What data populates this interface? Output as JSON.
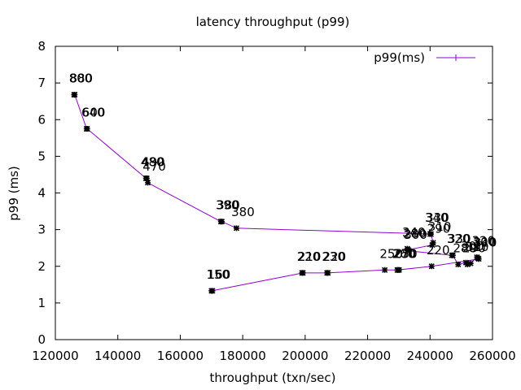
{
  "chart_data": {
    "type": "line",
    "title": "latency throughput (p99)",
    "xlabel": "throughput (txn/sec)",
    "ylabel": "p99 (ms)",
    "xlim": [
      120000,
      260000
    ],
    "ylim": [
      0,
      8
    ],
    "xticks": [
      120000,
      140000,
      160000,
      180000,
      200000,
      220000,
      240000,
      260000
    ],
    "yticks": [
      0,
      1,
      2,
      3,
      4,
      5,
      6,
      7,
      8
    ],
    "legend": {
      "label": "p99(ms)",
      "placement": "top-right"
    },
    "series_color": "#9400d3",
    "series": [
      {
        "name": "p99(ms)",
        "points": [
          {
            "x": 126000,
            "y": 6.68,
            "label": "800"
          },
          {
            "x": 126200,
            "y": 6.68,
            "label": "880"
          },
          {
            "x": 130000,
            "y": 5.75,
            "label": "640"
          },
          {
            "x": 130200,
            "y": 5.75,
            "label": "600"
          },
          {
            "x": 149000,
            "y": 4.4,
            "label": "480"
          },
          {
            "x": 149300,
            "y": 4.4,
            "label": "490"
          },
          {
            "x": 149600,
            "y": 4.28,
            "label": "470"
          },
          {
            "x": 173000,
            "y": 3.22,
            "label": "390"
          },
          {
            "x": 173300,
            "y": 3.22,
            "label": "380"
          },
          {
            "x": 178000,
            "y": 3.04,
            "label": "380"
          },
          {
            "x": 240000,
            "y": 2.88,
            "label": "340"
          },
          {
            "x": 240300,
            "y": 2.88,
            "label": "330"
          },
          {
            "x": 241000,
            "y": 2.64,
            "label": "310"
          },
          {
            "x": 240700,
            "y": 2.58,
            "label": "290"
          },
          {
            "x": 233000,
            "y": 2.45,
            "label": "280"
          },
          {
            "x": 232700,
            "y": 2.48,
            "label": "340"
          },
          {
            "x": 233300,
            "y": 2.42,
            "label": "300"
          },
          {
            "x": 247000,
            "y": 2.3,
            "label": "320"
          },
          {
            "x": 247300,
            "y": 2.3,
            "label": "330"
          },
          {
            "x": 249000,
            "y": 2.05,
            "label": "280"
          },
          {
            "x": 251500,
            "y": 2.1,
            "label": "300"
          },
          {
            "x": 252000,
            "y": 2.05,
            "label": "290"
          },
          {
            "x": 253000,
            "y": 2.08,
            "label": "310"
          },
          {
            "x": 255000,
            "y": 2.25,
            "label": "320"
          },
          {
            "x": 255300,
            "y": 2.22,
            "label": "300"
          },
          {
            "x": 255600,
            "y": 2.2,
            "label": "310"
          },
          {
            "x": 240500,
            "y": 2.0,
            "label": "220"
          },
          {
            "x": 229500,
            "y": 1.9,
            "label": "260"
          },
          {
            "x": 229800,
            "y": 1.9,
            "label": "270"
          },
          {
            "x": 230100,
            "y": 1.9,
            "label": "250"
          },
          {
            "x": 225500,
            "y": 1.9,
            "label": "250"
          },
          {
            "x": 207000,
            "y": 1.82,
            "label": "230"
          },
          {
            "x": 207300,
            "y": 1.82,
            "label": "220"
          },
          {
            "x": 199000,
            "y": 1.82,
            "label": "220"
          },
          {
            "x": 199300,
            "y": 1.82,
            "label": "210"
          },
          {
            "x": 170000,
            "y": 1.33,
            "label": "150"
          },
          {
            "x": 170300,
            "y": 1.33,
            "label": "160"
          }
        ]
      }
    ]
  }
}
